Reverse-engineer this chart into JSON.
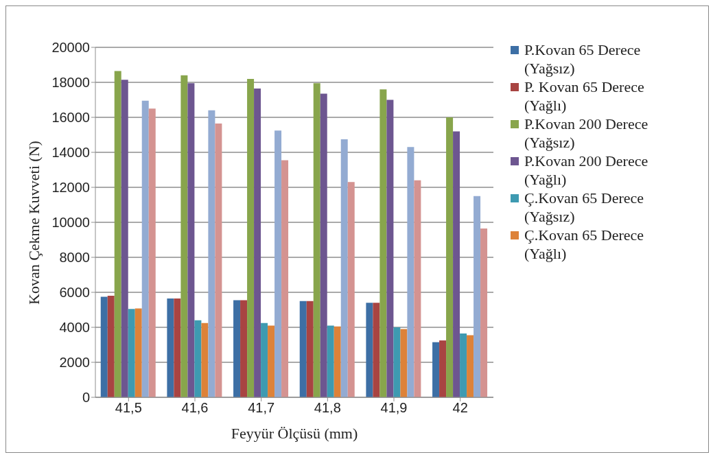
{
  "chart_data": {
    "type": "bar",
    "xlabel": "Feyyür Ölçüsü (mm)",
    "ylabel": "Kovan Çekme Kuvveti (N)",
    "categories": [
      "41,5",
      "41,6",
      "41,7",
      "41,8",
      "41,9",
      "42"
    ],
    "series": [
      {
        "name": "P.Kovan 65 Derece (Yağsız)",
        "color": "#3d6fa5",
        "values": [
          5750,
          5650,
          5550,
          5500,
          5400,
          3150
        ]
      },
      {
        "name": "P. Kovan 65 Derece (Yağlı)",
        "color": "#a84442",
        "values": [
          5800,
          5650,
          5550,
          5500,
          5400,
          3250
        ]
      },
      {
        "name": "P.Kovan 200 Derece (Yağsız)",
        "color": "#88a54c",
        "values": [
          18650,
          18400,
          18200,
          17950,
          17600,
          16000
        ]
      },
      {
        "name": "P.Kovan 200 Derece (Yağlı)",
        "color": "#6d5690",
        "values": [
          18150,
          17950,
          17650,
          17350,
          17000,
          15200
        ]
      },
      {
        "name": "Ç.Kovan 65 Derece (Yağsız)",
        "color": "#3e9ab1",
        "values": [
          5050,
          4400,
          4250,
          4100,
          4000,
          3650
        ]
      },
      {
        "name": "Ç.Kovan 65 Derece (Yağlı)",
        "color": "#dd8239",
        "values": [
          5080,
          4250,
          4100,
          4050,
          3900,
          3550
        ]
      },
      {
        "color": "#93abd2",
        "values": [
          16950,
          16400,
          15250,
          14750,
          14300,
          11500
        ]
      },
      {
        "color": "#d49391",
        "values": [
          16500,
          15650,
          13550,
          12300,
          12400,
          9650
        ]
      }
    ],
    "ylim": [
      0,
      20000
    ],
    "yticks": [
      0,
      2000,
      4000,
      6000,
      8000,
      10000,
      12000,
      14000,
      16000,
      18000,
      20000
    ],
    "grid": "y",
    "legend": "right"
  }
}
